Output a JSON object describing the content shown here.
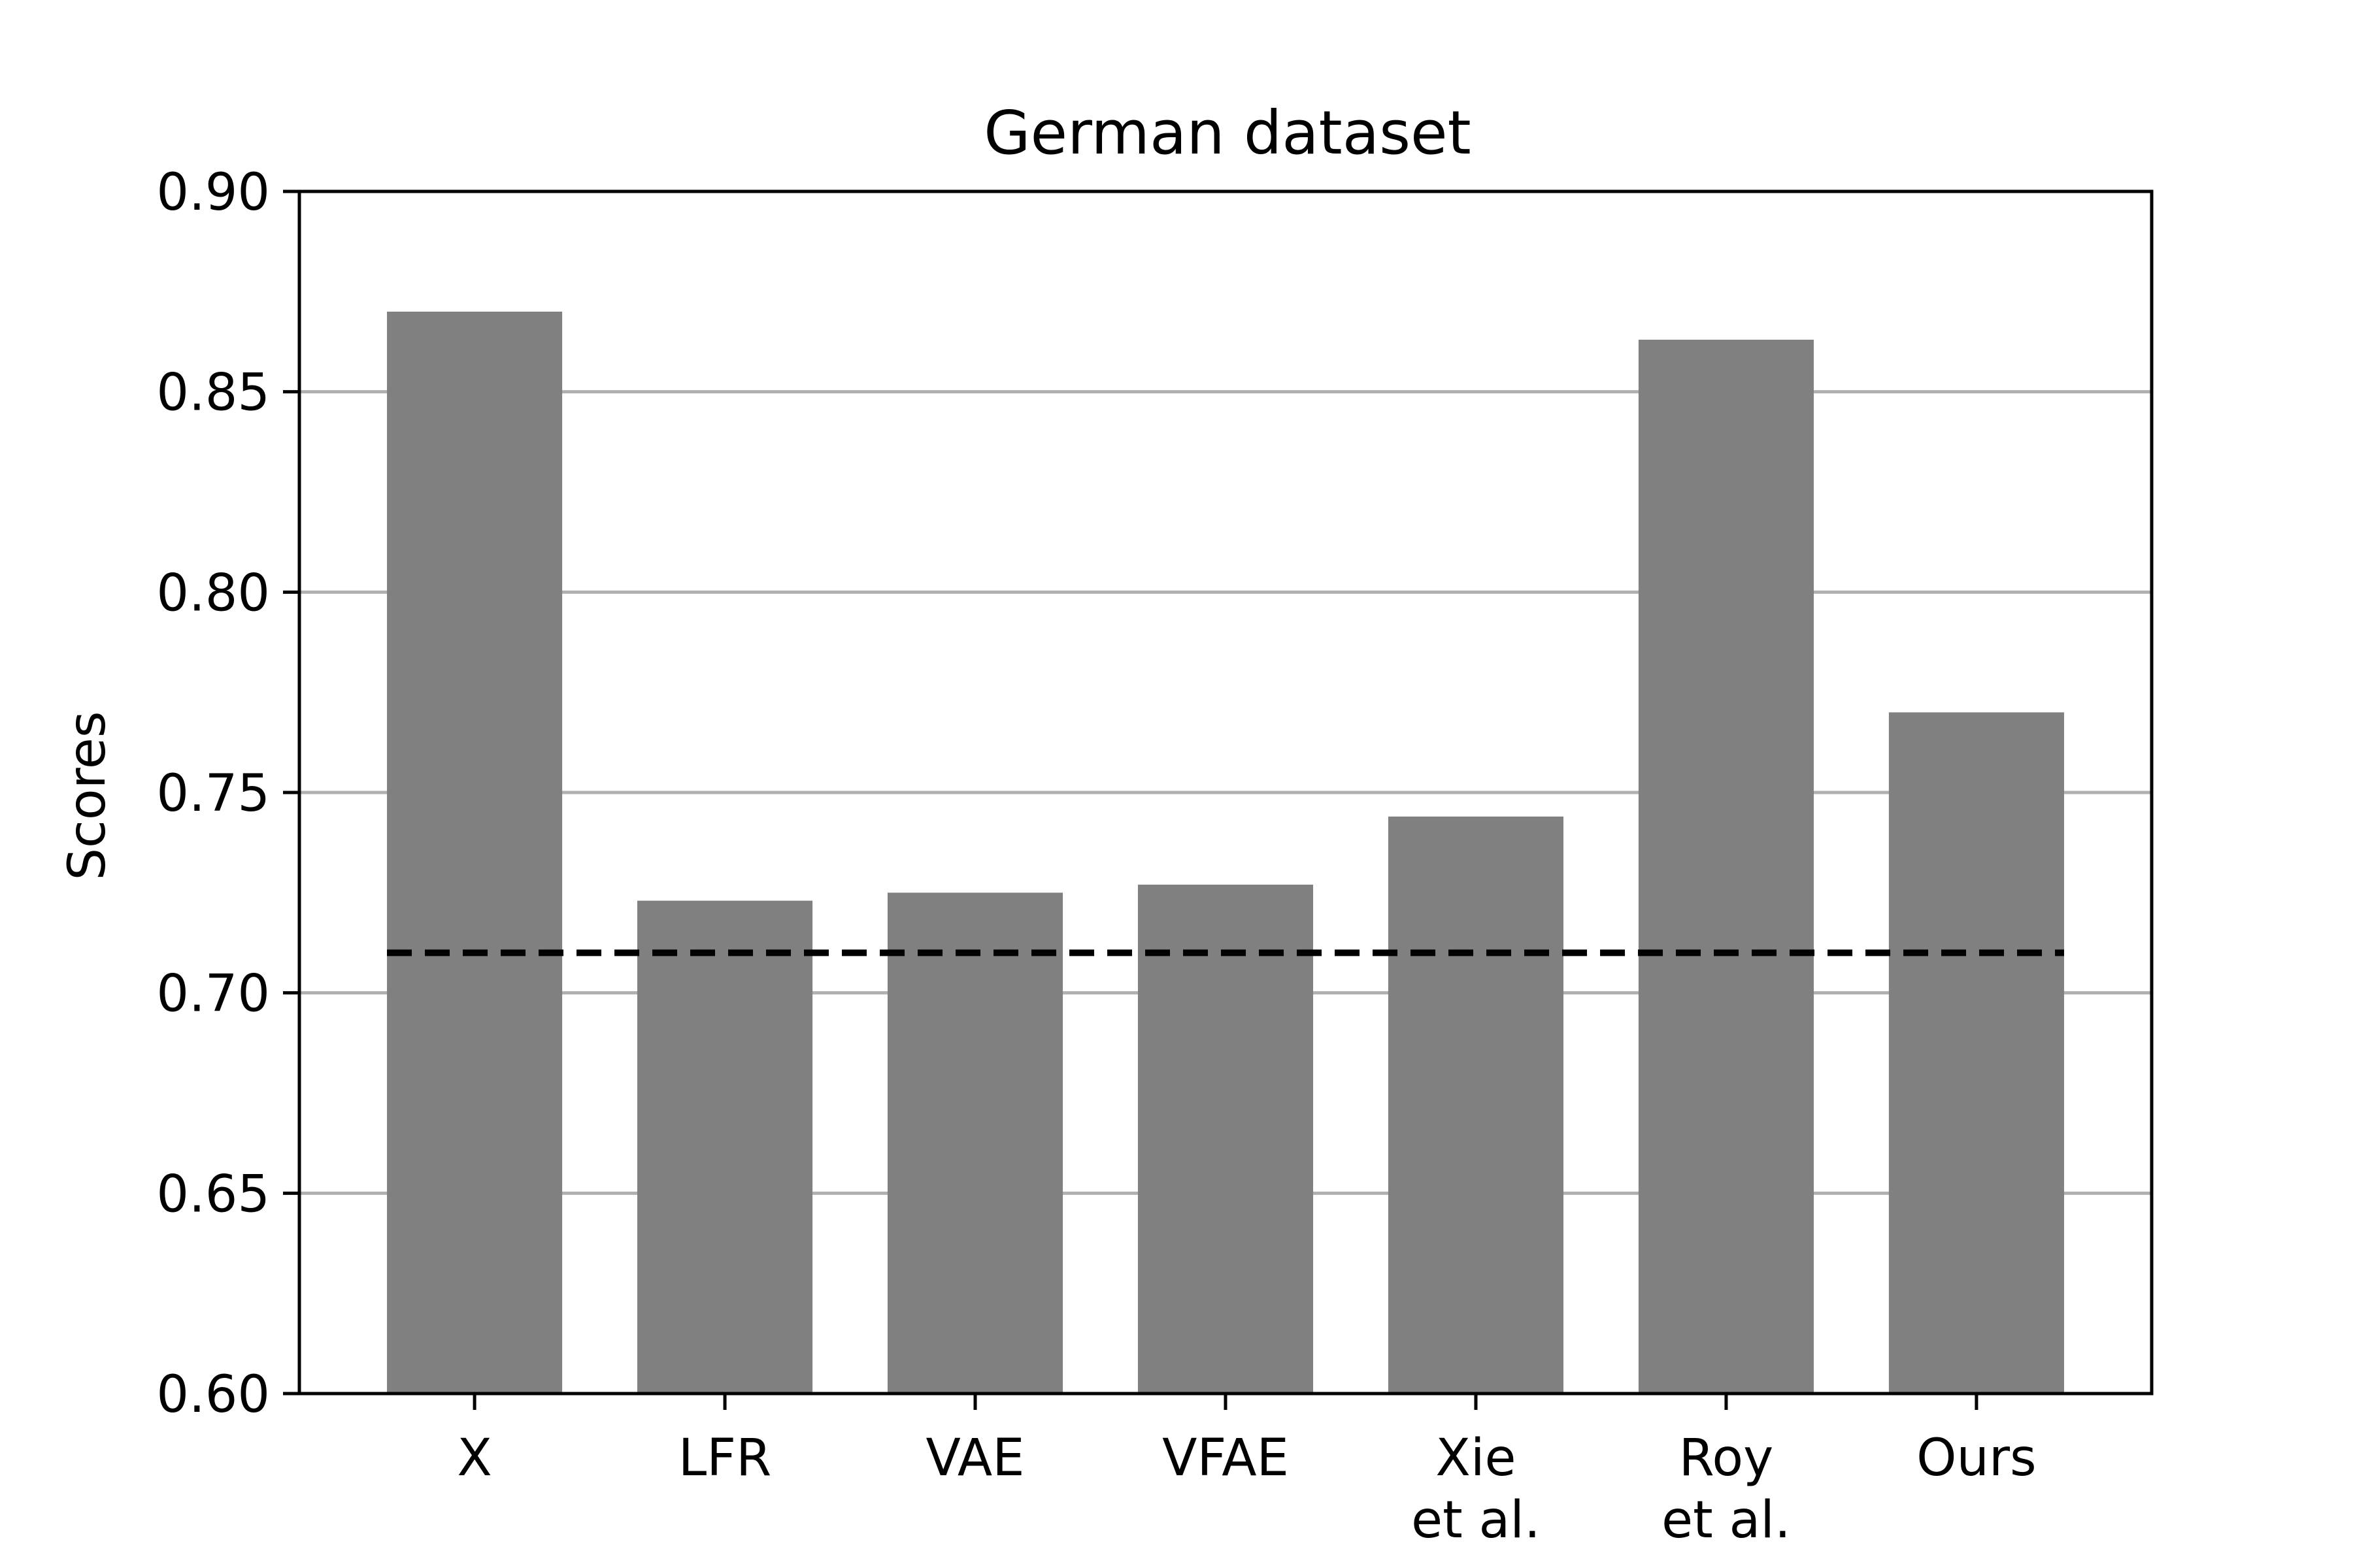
{
  "chart_data": {
    "type": "bar",
    "title": "German dataset",
    "xlabel": "",
    "ylabel": "Scores",
    "ylim": [
      0.6,
      0.9
    ],
    "yticks": [
      "0.60",
      "0.65",
      "0.70",
      "0.75",
      "0.80",
      "0.85",
      "0.90"
    ],
    "grid": "horizontal",
    "categories": [
      [
        "X"
      ],
      [
        "LFR"
      ],
      [
        "VAE"
      ],
      [
        "VFAE"
      ],
      [
        "Xie",
        "et al."
      ],
      [
        "Roy",
        "et al."
      ],
      [
        "Ours"
      ]
    ],
    "values": [
      0.87,
      0.723,
      0.725,
      0.727,
      0.744,
      0.863,
      0.77
    ],
    "reference_line": {
      "value": 0.71,
      "style": "dashed",
      "color": "#000000"
    },
    "colors": {
      "bar": "#808080",
      "grid": "#b0b0b0",
      "axis": "#000000"
    }
  }
}
